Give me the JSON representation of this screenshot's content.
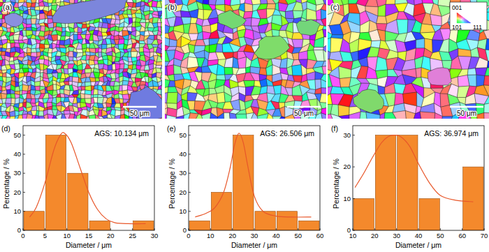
{
  "maps": [
    {
      "label": "(a)",
      "scale_bar": "50 μm"
    },
    {
      "label": "(b)",
      "scale_bar": "50 μm"
    },
    {
      "label": "(c)",
      "scale_bar": "50 μm"
    }
  ],
  "ipf_key": {
    "labels": [
      "001",
      "101",
      "111"
    ]
  },
  "chart_data": [
    {
      "type": "histogram",
      "label": "(d)",
      "annotation": "AGS: 10.134 μm",
      "x_label": "Diameter / μm",
      "y_label": "Percentage / %",
      "bins": [
        0,
        5,
        10,
        15,
        20,
        25,
        30
      ],
      "values": [
        10,
        50,
        30,
        5,
        0,
        5
      ],
      "color": "#f4892c",
      "xlim": [
        0,
        30
      ],
      "xticks": [
        0,
        5,
        10,
        15,
        20,
        25,
        30
      ],
      "ylim": [
        0,
        55
      ],
      "yticks": [
        0,
        10,
        20,
        30,
        40,
        50
      ],
      "fit": {
        "x": [
          1.5,
          3,
          5,
          7,
          8.5,
          9.5,
          11,
          13,
          15,
          17,
          19,
          21,
          24,
          28
        ],
        "values": [
          7,
          12,
          25,
          42,
          50,
          51,
          46,
          33,
          20,
          11,
          6,
          4,
          3.5,
          3.5
        ],
        "color": "#e8572a"
      }
    },
    {
      "type": "histogram",
      "label": "(e)",
      "annotation": "AGS: 26.506 μm",
      "x_label": "Diameter / μm",
      "y_label": "Percentage / %",
      "bins": [
        0,
        10,
        20,
        30,
        40,
        50,
        60
      ],
      "values": [
        5,
        20,
        50,
        10,
        10,
        5
      ],
      "color": "#f4892c",
      "xlim": [
        0,
        60
      ],
      "xticks": [
        0,
        10,
        20,
        30,
        40,
        50,
        60
      ],
      "ylim": [
        0,
        55
      ],
      "yticks": [
        0,
        10,
        20,
        30,
        40,
        50
      ],
      "fit": {
        "x": [
          3,
          8,
          12,
          16,
          19,
          21,
          23,
          25,
          27,
          30,
          34,
          40,
          47,
          56
        ],
        "values": [
          7,
          9,
          12,
          20,
          33,
          45,
          51,
          46,
          34,
          18,
          10,
          7.5,
          7,
          7
        ],
        "color": "#e8572a"
      }
    },
    {
      "type": "histogram",
      "label": "(f)",
      "annotation": "AGS: 36.974 μm",
      "x_label": "Diameter / μm",
      "y_label": "Percentage / %",
      "bins": [
        10,
        20,
        30,
        40,
        50,
        60,
        70
      ],
      "values": [
        10,
        30,
        30,
        10,
        0,
        20
      ],
      "color": "#f4892c",
      "xlim": [
        10,
        70
      ],
      "xticks": [
        10,
        20,
        30,
        40,
        50,
        60,
        70
      ],
      "ylim": [
        0,
        33
      ],
      "yticks": [
        0,
        10,
        20,
        30
      ],
      "fit": {
        "x": [
          11,
          15,
          19,
          23,
          26,
          29,
          32,
          36,
          40,
          45,
          50,
          57,
          65
        ],
        "values": [
          13.5,
          18,
          23,
          27.5,
          29.5,
          30,
          29.5,
          26.5,
          21,
          15,
          11,
          9.5,
          9
        ],
        "color": "#e8572a"
      }
    }
  ]
}
